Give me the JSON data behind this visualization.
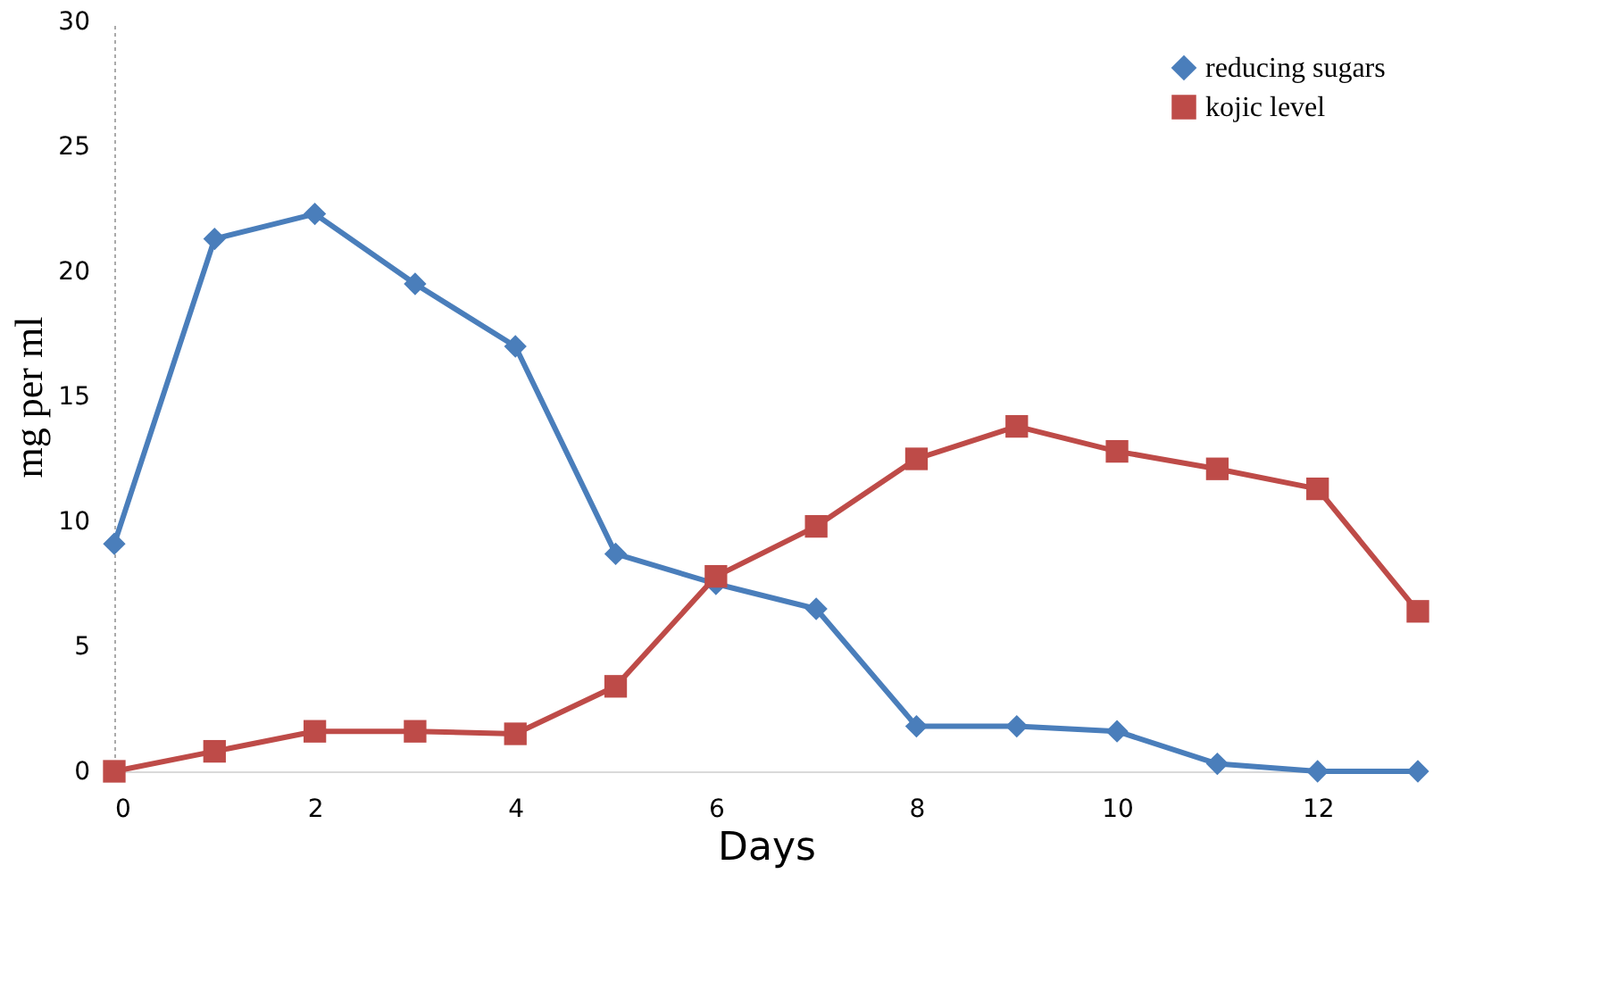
{
  "chart_data": {
    "type": "line",
    "xlabel": "Days",
    "ylabel": "mg per ml",
    "x": [
      0,
      1,
      2,
      3,
      4,
      5,
      6,
      7,
      8,
      9,
      10,
      11,
      12,
      13
    ],
    "series": [
      {
        "name": "reducing sugars",
        "color": "#4a7ebb",
        "marker": "diamond",
        "values": [
          9.1,
          21.3,
          22.3,
          19.5,
          17.0,
          8.7,
          7.5,
          6.5,
          1.8,
          1.8,
          1.6,
          0.3,
          0,
          0
        ]
      },
      {
        "name": "kojic level",
        "color": "#be4b48",
        "marker": "square",
        "values": [
          0,
          0.8,
          1.6,
          1.6,
          1.5,
          3.4,
          7.8,
          9.8,
          12.5,
          13.8,
          12.8,
          12.1,
          11.3,
          6.4
        ]
      }
    ],
    "xlim": [
      0,
      13
    ],
    "xticks": [
      0,
      2,
      4,
      6,
      8,
      10,
      12
    ],
    "ylim": [
      0,
      30
    ],
    "yticks": [
      0,
      5,
      10,
      15,
      20,
      25,
      30
    ],
    "grid": false,
    "legend": "top right",
    "line_style": "solid"
  }
}
